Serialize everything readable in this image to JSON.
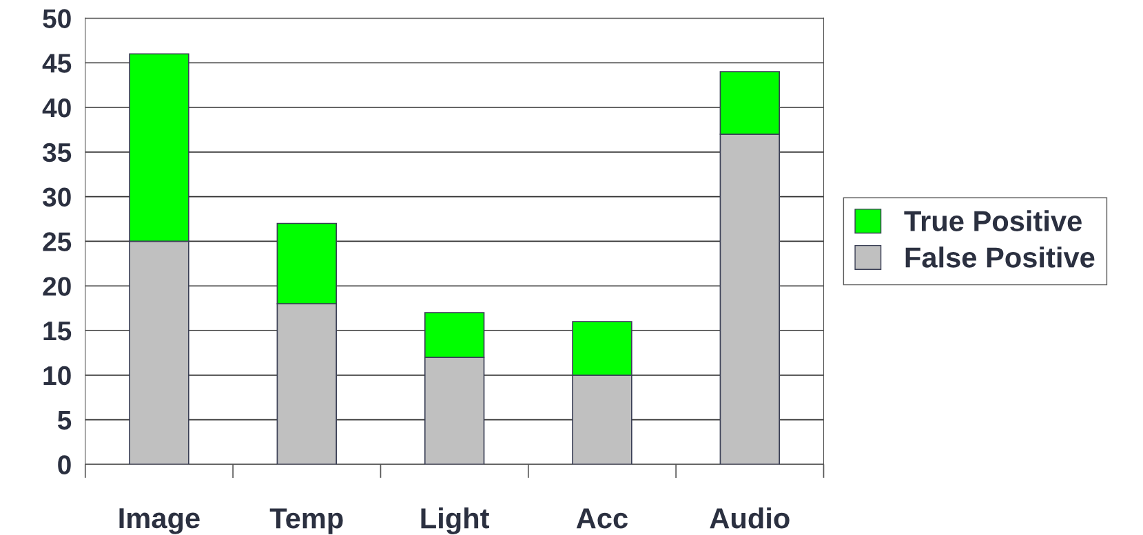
{
  "chart_data": {
    "type": "bar",
    "stacked": true,
    "categories": [
      "Image",
      "Temp",
      "Light",
      "Acc",
      "Audio"
    ],
    "series": [
      {
        "name": "False Positive",
        "color": "#c0c0c0",
        "values": [
          25,
          18,
          12,
          10,
          37
        ]
      },
      {
        "name": "True Positive",
        "color": "#00ff00",
        "values": [
          21,
          9,
          5,
          6,
          7
        ]
      }
    ],
    "ylim": [
      0,
      50
    ],
    "yticks": [
      0,
      5,
      10,
      15,
      20,
      25,
      30,
      35,
      40,
      45,
      50
    ],
    "grid": "y",
    "legend": "right"
  }
}
